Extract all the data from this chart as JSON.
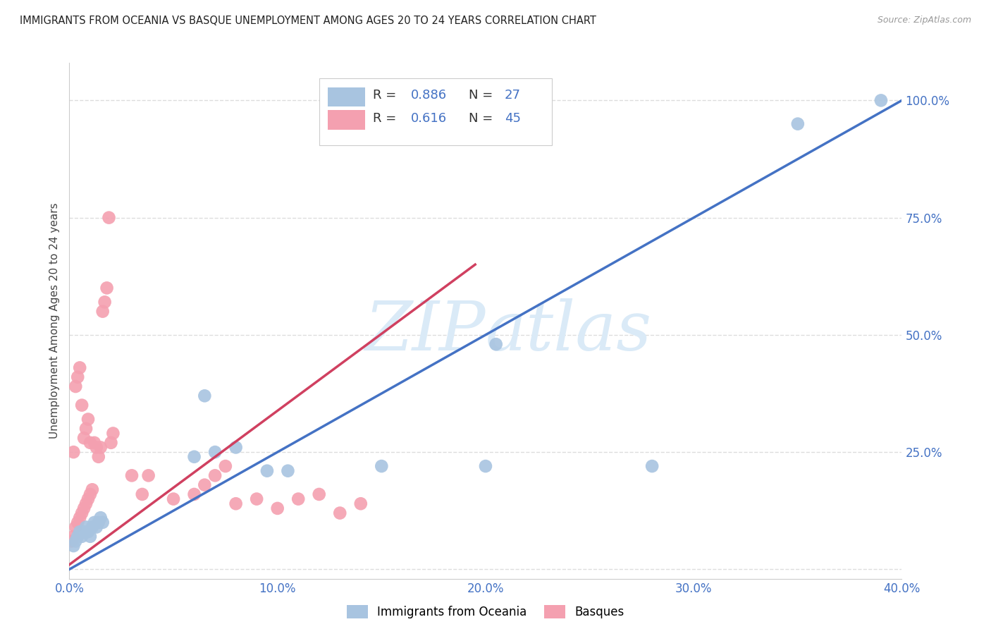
{
  "title": "IMMIGRANTS FROM OCEANIA VS BASQUE UNEMPLOYMENT AMONG AGES 20 TO 24 YEARS CORRELATION CHART",
  "source": "Source: ZipAtlas.com",
  "ylabel": "Unemployment Among Ages 20 to 24 years",
  "xlim": [
    0.0,
    0.4
  ],
  "ylim": [
    -0.02,
    1.08
  ],
  "xticks": [
    0.0,
    0.1,
    0.2,
    0.3,
    0.4
  ],
  "xtick_labels": [
    "0.0%",
    "10.0%",
    "20.0%",
    "30.0%",
    "40.0%"
  ],
  "yticks": [
    0.0,
    0.25,
    0.5,
    0.75,
    1.0
  ],
  "ytick_labels": [
    "",
    "25.0%",
    "50.0%",
    "75.0%",
    "100.0%"
  ],
  "blue_R": 0.886,
  "blue_N": 27,
  "pink_R": 0.616,
  "pink_N": 45,
  "blue_color": "#a8c4e0",
  "blue_line_color": "#4472c4",
  "pink_color": "#f4a0b0",
  "pink_line_color": "#d04060",
  "watermark_color": "#daeaf7",
  "grid_color": "#dddddd",
  "title_color": "#222222",
  "source_color": "#999999",
  "axis_color": "#cccccc",
  "label_color": "#4472c4",
  "blue_line_x0": 0.0,
  "blue_line_y0": 0.0,
  "blue_line_x1": 0.4,
  "blue_line_y1": 1.0,
  "pink_line_x0": 0.0,
  "pink_line_y0": 0.01,
  "pink_line_x1": 0.195,
  "pink_line_y1": 0.65,
  "blue_scatter_x": [
    0.002,
    0.003,
    0.004,
    0.005,
    0.006,
    0.007,
    0.008,
    0.009,
    0.01,
    0.011,
    0.012,
    0.013,
    0.014,
    0.015,
    0.016,
    0.06,
    0.065,
    0.07,
    0.08,
    0.095,
    0.105,
    0.15,
    0.2,
    0.205,
    0.28,
    0.35,
    0.39
  ],
  "blue_scatter_y": [
    0.05,
    0.06,
    0.07,
    0.08,
    0.07,
    0.08,
    0.09,
    0.08,
    0.07,
    0.09,
    0.1,
    0.09,
    0.1,
    0.11,
    0.1,
    0.24,
    0.37,
    0.25,
    0.26,
    0.21,
    0.21,
    0.22,
    0.22,
    0.48,
    0.22,
    0.95,
    1.0
  ],
  "pink_scatter_x": [
    0.001,
    0.002,
    0.002,
    0.003,
    0.003,
    0.004,
    0.004,
    0.005,
    0.005,
    0.006,
    0.006,
    0.007,
    0.007,
    0.008,
    0.008,
    0.009,
    0.009,
    0.01,
    0.01,
    0.011,
    0.012,
    0.013,
    0.014,
    0.015,
    0.016,
    0.017,
    0.018,
    0.019,
    0.02,
    0.021,
    0.03,
    0.035,
    0.038,
    0.05,
    0.06,
    0.065,
    0.07,
    0.075,
    0.08,
    0.09,
    0.1,
    0.11,
    0.12,
    0.13,
    0.14
  ],
  "pink_scatter_y": [
    0.06,
    0.07,
    0.25,
    0.09,
    0.39,
    0.1,
    0.41,
    0.11,
    0.43,
    0.12,
    0.35,
    0.13,
    0.28,
    0.14,
    0.3,
    0.15,
    0.32,
    0.16,
    0.27,
    0.17,
    0.27,
    0.26,
    0.24,
    0.26,
    0.55,
    0.57,
    0.6,
    0.75,
    0.27,
    0.29,
    0.2,
    0.16,
    0.2,
    0.15,
    0.16,
    0.18,
    0.2,
    0.22,
    0.14,
    0.15,
    0.13,
    0.15,
    0.16,
    0.12,
    0.14
  ]
}
